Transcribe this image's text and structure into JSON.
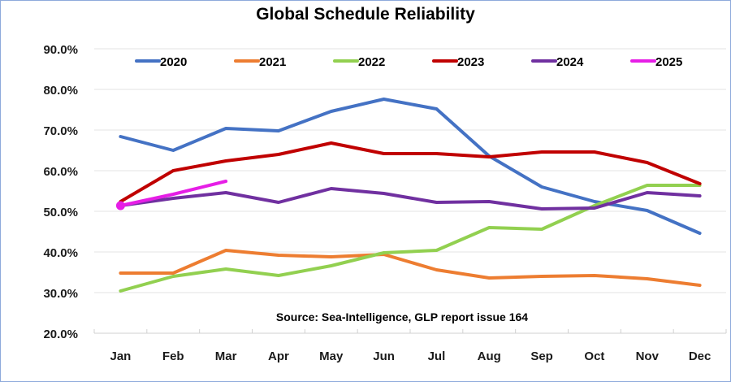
{
  "chart_data": {
    "type": "line",
    "title": "Global Schedule Reliability",
    "xlabel": "",
    "ylabel": "",
    "categories": [
      "Jan",
      "Feb",
      "Mar",
      "Apr",
      "May",
      "Jun",
      "Jul",
      "Aug",
      "Sep",
      "Oct",
      "Nov",
      "Dec"
    ],
    "ylim": [
      20,
      90
    ],
    "yticks": [
      20,
      30,
      40,
      50,
      60,
      70,
      80,
      90
    ],
    "ytick_labels": [
      "20.0%",
      "30.0%",
      "40.0%",
      "50.0%",
      "60.0%",
      "70.0%",
      "80.0%",
      "90.0%"
    ],
    "grid": true,
    "legend_position": "top",
    "annotation": "Source: Sea-Intelligence, GLP report issue 164",
    "series": [
      {
        "name": "2020",
        "color": "#4472c4",
        "values": [
          68.4,
          65.0,
          70.4,
          69.8,
          74.6,
          77.6,
          75.2,
          63.6,
          56.0,
          52.4,
          50.2,
          44.6
        ]
      },
      {
        "name": "2021",
        "color": "#ed7d31",
        "values": [
          34.8,
          34.8,
          40.4,
          39.2,
          38.8,
          39.4,
          35.6,
          33.6,
          34.0,
          34.2,
          33.4,
          31.8
        ]
      },
      {
        "name": "2022",
        "color": "#92d050",
        "values": [
          30.4,
          34.0,
          35.8,
          34.2,
          36.6,
          39.8,
          40.4,
          46.0,
          45.6,
          51.4,
          56.4,
          56.4
        ]
      },
      {
        "name": "2023",
        "color": "#c00000",
        "values": [
          52.4,
          60.0,
          62.4,
          64.0,
          66.8,
          64.2,
          64.2,
          63.4,
          64.6,
          64.6,
          62.0,
          56.8
        ]
      },
      {
        "name": "2024",
        "color": "#7030a0",
        "values": [
          51.4,
          53.2,
          54.6,
          52.2,
          55.6,
          54.4,
          52.2,
          52.4,
          50.6,
          50.8,
          54.6,
          53.8
        ]
      },
      {
        "name": "2025",
        "color": "#e61ee6",
        "values": [
          51.4,
          54.2,
          57.4
        ],
        "marker_first": true
      }
    ]
  }
}
